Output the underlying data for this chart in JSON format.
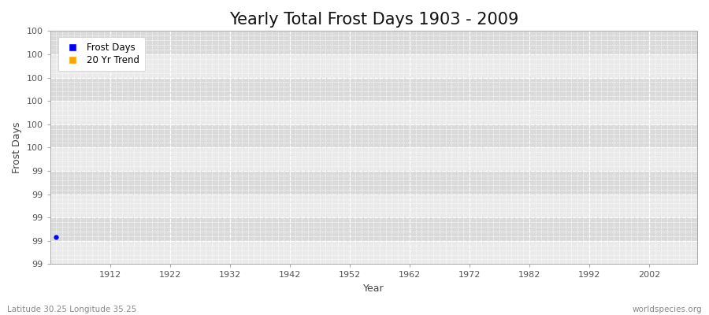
{
  "title": "Yearly Total Frost Days 1903 - 2009",
  "xlabel": "Year",
  "ylabel": "Frost Days",
  "subtitle_left": "Latitude 30.25 Longitude 35.25",
  "subtitle_right": "worldspecies.org",
  "xmin": 1902,
  "xmax": 2010,
  "xticks": [
    1912,
    1922,
    1932,
    1942,
    1952,
    1962,
    1972,
    1982,
    1992,
    2002
  ],
  "frost_days_x": [
    1903
  ],
  "frost_days_y": [
    99.0
  ],
  "trend_x": [],
  "trend_y": [],
  "data_color": "#0000ff",
  "trend_color": "#ffa500",
  "bg_color": "#e6e6e6",
  "band_light": "#eaeaea",
  "band_dark": "#dadada",
  "grid_color": "#ffffff",
  "fig_bg": "#ffffff",
  "legend_labels": [
    "Frost Days",
    "20 Yr Trend"
  ],
  "legend_colors": [
    "#0000ff",
    "#ffa500"
  ],
  "title_fontsize": 15,
  "axis_label_fontsize": 9,
  "tick_fontsize": 8,
  "subtitle_fontsize": 7.5,
  "ymin": 98.85,
  "ymax": 100.15,
  "n_major_yticks": 11,
  "minor_per_major": 5
}
